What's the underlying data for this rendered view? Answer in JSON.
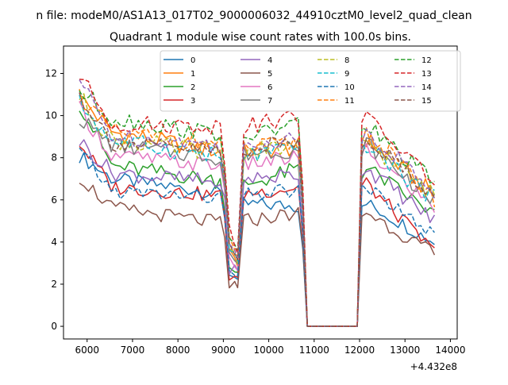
{
  "chart_data": {
    "type": "line",
    "suptitle": "n file: modeM0/AS1A13_017T02_9000006032_44910cztM0_level2_quad_clean",
    "title": "Quadrant 1 module wise count rates with 100.0s bins.",
    "xlabel": "",
    "ylabel": "",
    "offset_label": "+4.432e8",
    "xlim": [
      5480,
      14150
    ],
    "ylim": [
      -0.6,
      13.3
    ],
    "x_offset": 443200000,
    "x_ticks": [
      6000,
      7000,
      8000,
      9000,
      10000,
      11000,
      12000,
      13000,
      14000
    ],
    "y_ticks": [
      0,
      2,
      4,
      6,
      8,
      10,
      12
    ],
    "grid": false,
    "legend": {
      "position": "top-center",
      "columns": 4
    },
    "x_segments": [
      {
        "start": 5830,
        "end": 9200,
        "step": 100
      },
      {
        "start": 9250,
        "end": 9380,
        "step": 65
      },
      {
        "start": 9450,
        "end": 10750,
        "step": 100
      },
      {
        "start": 10850,
        "end": 11950,
        "step": 1100
      },
      {
        "start": 12050,
        "end": 13650,
        "step": 100
      }
    ],
    "series": [
      {
        "name": "0",
        "color": "#1f77b4",
        "dashed": false,
        "levels": [
          8.1,
          7.0,
          6.3,
          1.8,
          5.8,
          5.7,
          0,
          5.9,
          4.0
        ],
        "spread": 0.35
      },
      {
        "name": "1",
        "color": "#ff7f0e",
        "dashed": false,
        "levels": [
          10.9,
          9.2,
          8.3,
          2.4,
          8.3,
          8.5,
          0,
          9.0,
          6.2
        ],
        "spread": 0.45
      },
      {
        "name": "2",
        "color": "#2ca02c",
        "dashed": false,
        "levels": [
          10.6,
          7.6,
          6.9,
          2.0,
          6.7,
          7.5,
          0,
          7.6,
          5.3
        ],
        "spread": 0.4
      },
      {
        "name": "3",
        "color": "#d62728",
        "dashed": false,
        "levels": [
          8.7,
          6.6,
          6.2,
          1.8,
          6.3,
          6.6,
          0,
          6.9,
          3.5
        ],
        "spread": 0.35
      },
      {
        "name": "4",
        "color": "#9467bd",
        "dashed": false,
        "levels": [
          8.8,
          7.3,
          6.8,
          2.1,
          7.0,
          7.2,
          0,
          7.6,
          5.0
        ],
        "spread": 0.4
      },
      {
        "name": "5",
        "color": "#8c564b",
        "dashed": false,
        "levels": [
          7.1,
          5.6,
          4.9,
          1.6,
          5.0,
          5.4,
          0,
          5.5,
          3.4
        ],
        "spread": 0.35
      },
      {
        "name": "6",
        "color": "#e377c2",
        "dashed": false,
        "levels": [
          10.3,
          8.1,
          7.6,
          2.2,
          7.7,
          8.0,
          0,
          8.4,
          5.6
        ],
        "spread": 0.4
      },
      {
        "name": "7",
        "color": "#7f7f7f",
        "dashed": false,
        "levels": [
          9.9,
          8.6,
          8.0,
          2.3,
          8.2,
          8.4,
          0,
          8.8,
          5.9
        ],
        "spread": 0.4
      },
      {
        "name": "8",
        "color": "#bcbd22",
        "dashed": true,
        "levels": [
          10.9,
          8.8,
          8.3,
          2.6,
          8.2,
          8.6,
          0,
          8.9,
          6.2
        ],
        "spread": 0.45
      },
      {
        "name": "9",
        "color": "#17becf",
        "dashed": true,
        "levels": [
          10.6,
          8.8,
          8.1,
          2.5,
          8.1,
          8.4,
          0,
          8.7,
          6.0
        ],
        "spread": 0.45
      },
      {
        "name": "10",
        "color": "#1f77b4",
        "dashed": true,
        "levels": [
          8.3,
          6.4,
          6.1,
          1.9,
          6.2,
          6.5,
          0,
          6.7,
          4.3
        ],
        "spread": 0.35
      },
      {
        "name": "11",
        "color": "#ff7f0e",
        "dashed": true,
        "levels": [
          11.0,
          9.2,
          8.6,
          2.7,
          8.4,
          8.7,
          0,
          9.3,
          6.1
        ],
        "spread": 0.45
      },
      {
        "name": "12",
        "color": "#2ca02c",
        "dashed": true,
        "levels": [
          11.2,
          9.9,
          9.1,
          2.8,
          9.0,
          9.6,
          0,
          9.6,
          6.8
        ],
        "spread": 0.45
      },
      {
        "name": "13",
        "color": "#d62728",
        "dashed": true,
        "levels": [
          11.9,
          9.6,
          9.5,
          2.9,
          9.5,
          10.0,
          0,
          10.0,
          6.9
        ],
        "spread": 0.4
      },
      {
        "name": "14",
        "color": "#9467bd",
        "dashed": true,
        "levels": [
          11.7,
          9.0,
          8.6,
          2.6,
          8.6,
          9.0,
          0,
          9.4,
          6.4
        ],
        "spread": 0.4
      },
      {
        "name": "15",
        "color": "#8c564b",
        "dashed": true,
        "levels": [
          11.0,
          8.7,
          8.3,
          2.6,
          8.4,
          8.8,
          0,
          9.1,
          6.2
        ],
        "spread": 0.4
      }
    ]
  }
}
